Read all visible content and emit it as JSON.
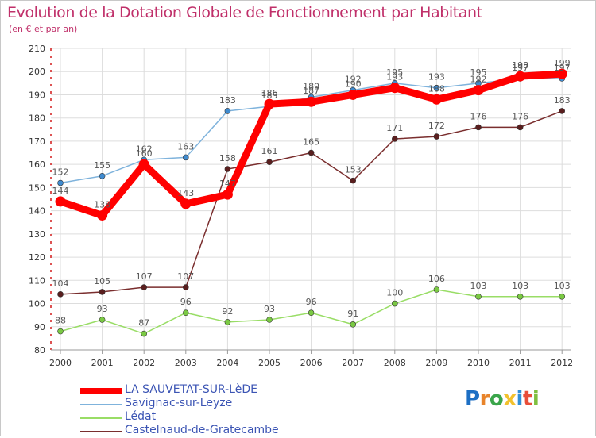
{
  "title": "Evolution de la Dotation Globale de Fonctionnement par Habitant",
  "subtitle": "(en € et par an)",
  "logo": {
    "letters": [
      {
        "ch": "P",
        "color": "#1d6fc4"
      },
      {
        "ch": "r",
        "color": "#e8842a"
      },
      {
        "ch": "o",
        "color": "#3aa54a"
      },
      {
        "ch": "x",
        "color": "#f2c12e"
      },
      {
        "ch": "i",
        "color": "#2f8fd8"
      },
      {
        "ch": "t",
        "color": "#e84e3a"
      },
      {
        "ch": "i",
        "color": "#7fbf3f"
      }
    ]
  },
  "chart_data": {
    "type": "line",
    "title": "Evolution de la Dotation Globale de Fonctionnement par Habitant",
    "subtitle": "(en € et par an)",
    "categories": [
      "2000",
      "2001",
      "2002",
      "2003",
      "2004",
      "2005",
      "2006",
      "2007",
      "2008",
      "2009",
      "2010",
      "2011",
      "2012"
    ],
    "ylim": [
      80,
      210
    ],
    "yticks": [
      80,
      90,
      100,
      110,
      120,
      130,
      140,
      150,
      160,
      170,
      180,
      190,
      200,
      210
    ],
    "grid": true,
    "series": [
      {
        "name": "LA SAUVETAT-SUR-LèDE",
        "color": "#ff0000",
        "marker": "#ff0000",
        "emphasis": true,
        "values": [
          144,
          138,
          160,
          143,
          147,
          186,
          187,
          190,
          193,
          188,
          192,
          198,
          199
        ],
        "labels": [
          "144",
          "138",
          "160",
          "143",
          "147",
          "186",
          "187",
          "190",
          "193",
          "188",
          "192",
          "198",
          "199"
        ]
      },
      {
        "name": "Savignac-sur-Leyze",
        "color": "#7fb3dc",
        "marker": "#3f8bd0",
        "emphasis": false,
        "values": [
          152,
          155,
          162,
          163,
          183,
          185,
          189,
          192,
          195,
          193,
          195,
          197,
          197
        ],
        "labels": [
          "152",
          "155",
          "162",
          "163",
          "183",
          "185",
          "189",
          "192",
          "195",
          "193",
          "195",
          "197",
          "197"
        ]
      },
      {
        "name": "Lédat",
        "color": "#99dd66",
        "marker": "#7ac943",
        "emphasis": false,
        "values": [
          88,
          93,
          87,
          96,
          92,
          93,
          96,
          91,
          100,
          106,
          103,
          103,
          103
        ],
        "labels": [
          "88",
          "93",
          "87",
          "96",
          "92",
          "93",
          "96",
          "91",
          "100",
          "106",
          "103",
          "103",
          "103"
        ]
      },
      {
        "name": "Castelnaud-de-Gratecambe",
        "color": "#7a2e2e",
        "marker": "#5a1e1e",
        "emphasis": false,
        "values": [
          104,
          105,
          107,
          107,
          158,
          161,
          165,
          153,
          171,
          172,
          176,
          176,
          183
        ],
        "labels": [
          "104",
          "105",
          "107",
          "107",
          "158",
          "161",
          "165",
          "153",
          "171",
          "172",
          "176",
          "176",
          "183"
        ]
      }
    ]
  }
}
